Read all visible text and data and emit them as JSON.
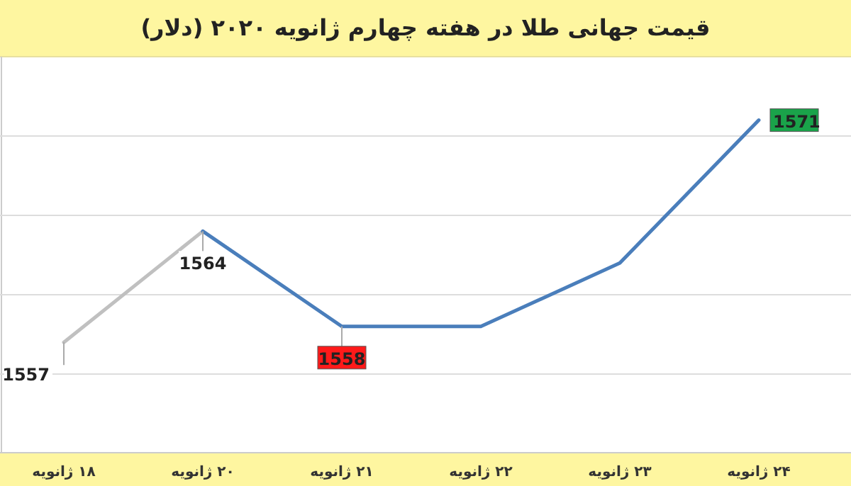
{
  "chart_data": {
    "type": "line",
    "title": "قیمت جهانی طلا در هفته چهارم ژانویه ۲۰۲۰ (دلار)",
    "categories": [
      "۱۸ ژانویه",
      "۲۰ ژانویه",
      "۲۱ ژانویه",
      "۲۲ ژانویه",
      "۲۳ ژانویه",
      "۲۴ ژانویه"
    ],
    "series": [
      {
        "color": "#c0c0c0",
        "values": [
          1557,
          1564,
          null,
          null,
          null,
          null
        ],
        "value_labels": [
          "1557",
          null,
          null,
          null,
          null,
          null
        ]
      },
      {
        "color": "#4a7ebb",
        "values": [
          null,
          1564,
          1558,
          1558,
          1562,
          1571
        ],
        "value_labels": [
          null,
          "1564",
          "1558",
          null,
          null,
          "1571"
        ]
      }
    ],
    "ylim": [
      1550,
      1575
    ],
    "yticks": [
      {
        "value": 1555,
        "label": null
      },
      {
        "value": 1560,
        "label": null
      },
      {
        "value": 1565,
        "label": null
      },
      {
        "value": 1570,
        "label": null
      }
    ],
    "grid": "y",
    "tick_labels": "x",
    "marker": "none",
    "line_style": "solid"
  }
}
